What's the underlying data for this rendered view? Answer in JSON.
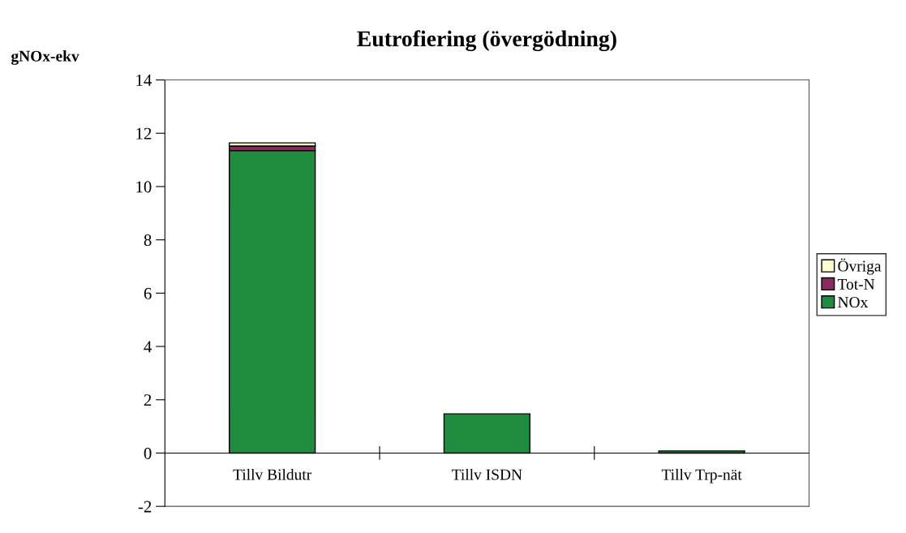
{
  "chart_data": {
    "type": "bar",
    "title": "Eutrofiering (övergödning)",
    "ylabel": "gNOx-ekv",
    "categories": [
      "Tillv Bildutr",
      "Tillv ISDN",
      "Tillv Trp-nät"
    ],
    "series": [
      {
        "name": "NOx",
        "color": "#1f8c3f",
        "values": [
          11.35,
          1.47,
          0.08
        ]
      },
      {
        "name": "Tot-N",
        "color": "#8b2a5e",
        "values": [
          0.17,
          null,
          null
        ]
      },
      {
        "name": "Övriga",
        "color": "#ffffd0",
        "values": [
          0.12,
          null,
          null
        ]
      }
    ],
    "stacked": true,
    "ylim": [
      -2,
      14
    ],
    "yticks": [
      -2,
      0,
      2,
      4,
      6,
      8,
      10,
      12,
      14
    ],
    "grid": false,
    "legend": "right"
  }
}
